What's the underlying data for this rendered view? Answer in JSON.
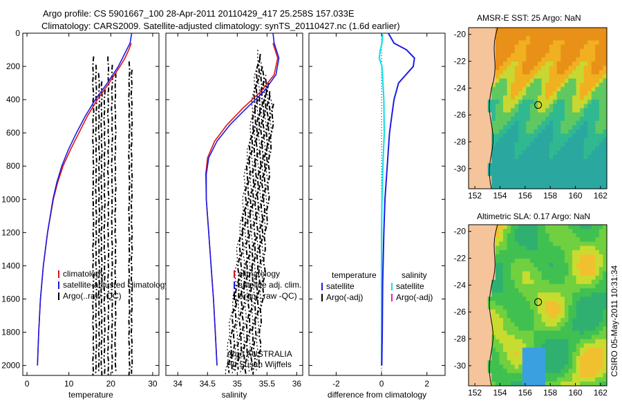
{
  "header": {
    "line1": "Argo profile: CS 5901667_100 28-Apr-2011 20110429_417 25.258S 157.033E",
    "line2": "Climatology: CARS2009. Satellite-adjusted climatology: synTS_20110427.nc (1.6d earlier)"
  },
  "colors": {
    "clim": "#e01010",
    "sat": "#1a1ae6",
    "argo": "#000000",
    "cyan": "#18e0e8",
    "magenta": "#e018d0",
    "land": "#f6c49a"
  },
  "chart_data": [
    {
      "type": "line",
      "xlabel": "temperature",
      "xlim": [
        -1,
        31.5
      ],
      "ylim": [
        2060,
        0
      ],
      "xticks": [
        0,
        10,
        20,
        30
      ],
      "yticks": [
        0,
        200,
        400,
        600,
        800,
        1000,
        1200,
        1400,
        1600,
        1800,
        2000
      ],
      "series": [
        {
          "name": "climatology",
          "depth": [
            60,
            100,
            150,
            200,
            300,
            400,
            500,
            600,
            700,
            800,
            900,
            1000,
            1200,
            1400,
            1600,
            1800,
            2000
          ],
          "values": [
            24.9,
            24.3,
            23.4,
            22.2,
            19.6,
            16.8,
            14.4,
            12.4,
            10.4,
            8.6,
            7.3,
            6.3,
            4.9,
            3.9,
            3.2,
            2.8,
            2.5
          ]
        },
        {
          "name": "satellite-adjusted climatology",
          "depth": [
            0,
            60,
            100,
            150,
            200,
            300,
            400,
            500,
            600,
            700,
            800,
            900,
            1000,
            1200,
            1400,
            1600,
            1800,
            2000
          ],
          "values": [
            25.0,
            24.6,
            23.8,
            22.8,
            21.8,
            19.2,
            16.3,
            13.9,
            11.8,
            9.9,
            8.3,
            7.1,
            6.2,
            4.9,
            3.9,
            3.2,
            2.8,
            2.5
          ]
        },
        {
          "name": "Argo(..raw -QC)",
          "style": "dash-dot",
          "lines": [
            15.8,
            16.5,
            17.2,
            17.8,
            18.5,
            19.4,
            20.3,
            21.1,
            24.4,
            25.0
          ]
        }
      ],
      "legend": [
        "climatology",
        "satellite-adjusted climatology",
        "Argo(..raw -QC)"
      ]
    },
    {
      "type": "line",
      "xlabel": "salinity",
      "xlim": [
        33.8,
        36.1
      ],
      "ylim": [
        2060,
        0
      ],
      "xticks": [
        34,
        34.5,
        35,
        35.5,
        36
      ],
      "yticks": [
        0,
        200,
        400,
        600,
        800,
        1000,
        1200,
        1400,
        1600,
        1800,
        2000
      ],
      "series": [
        {
          "name": "climatology",
          "depth": [
            60,
            150,
            250,
            350,
            450,
            550,
            650,
            750,
            850,
            1000,
            1200,
            1400,
            1600,
            1800,
            2000
          ],
          "values": [
            35.6,
            35.68,
            35.62,
            35.4,
            35.1,
            34.83,
            34.62,
            34.5,
            34.47,
            34.48,
            34.52,
            34.56,
            34.6,
            34.63,
            34.66
          ]
        },
        {
          "name": "satellite adj. clim.",
          "depth": [
            0,
            60,
            150,
            250,
            350,
            450,
            550,
            650,
            750,
            850,
            1000,
            1200,
            1400,
            1600,
            1800,
            2000
          ],
          "values": [
            35.6,
            35.62,
            35.7,
            35.65,
            35.45,
            35.16,
            34.88,
            34.66,
            34.52,
            34.48,
            34.48,
            34.52,
            34.56,
            34.6,
            34.63,
            34.66
          ]
        },
        {
          "name": "Argo(..raw -QC)",
          "style": "dash-dot",
          "top_range": [
            35.35,
            35.6
          ],
          "bottom_range": [
            34.8,
            35.35
          ]
        }
      ],
      "legend": [
        "climatology",
        "satellite adj. clim.",
        "Argo(..raw -QC)"
      ],
      "annotation": [
        "Argo AUSTRALIA",
        "PI: Susan Wijffels"
      ]
    },
    {
      "type": "line",
      "xlabel": "difference from climatology",
      "xlim": [
        -3.2,
        2.8
      ],
      "ylim": [
        2060,
        0
      ],
      "xticks": [
        -2,
        0,
        2
      ],
      "yticks": [
        0,
        200,
        400,
        600,
        800,
        1000,
        1200,
        1400,
        1600,
        1800,
        2000
      ],
      "series": [
        {
          "name": "temperature satellite",
          "depth": [
            0,
            60,
            100,
            150,
            200,
            300,
            400,
            500,
            600,
            800,
            1000,
            1200,
            1500,
            1800,
            2000
          ],
          "values": [
            0.3,
            0.55,
            1.1,
            1.45,
            1.4,
            0.75,
            0.55,
            0.45,
            0.35,
            0.25,
            0.15,
            0.1,
            0.05,
            0.03,
            0.01
          ]
        },
        {
          "name": "salinity satellite",
          "depth": [
            0,
            60,
            100,
            150,
            200,
            400,
            600,
            800,
            1000,
            1200,
            1500,
            1800,
            2000
          ],
          "values": [
            0.05,
            0.02,
            -0.05,
            -0.1,
            0.02,
            0.1,
            0.12,
            0.06,
            0.02,
            0.0,
            0.0,
            0.0,
            0.0
          ]
        }
      ],
      "legend_temperature": [
        "temperature",
        "satellite",
        "Argo(-adj)"
      ],
      "legend_salinity": [
        "salinity",
        "satellite",
        "Argo(-adj)"
      ]
    },
    {
      "type": "heatmap",
      "title": "AMSR-E SST: 25 Argo: NaN",
      "xlim": [
        151.5,
        162.5
      ],
      "ylim": [
        -31.5,
        -19.5
      ],
      "xticks": [
        152,
        154,
        156,
        158,
        160,
        162
      ],
      "yticks": [
        -20,
        -22,
        -24,
        -26,
        -28,
        -30
      ],
      "marker": {
        "lon": 157.033,
        "lat": -25.258
      }
    },
    {
      "type": "heatmap",
      "title": "Altimetric SLA: 0.17 Argo: NaN",
      "xlim": [
        151.5,
        162.5
      ],
      "ylim": [
        -31.5,
        -19.5
      ],
      "xticks": [
        152,
        154,
        156,
        158,
        160,
        162
      ],
      "yticks": [
        -20,
        -22,
        -24,
        -26,
        -28,
        -30
      ],
      "marker": {
        "lon": 157.033,
        "lat": -25.258
      }
    }
  ],
  "credit": "CSIRO 05-May-2011 10:31:34"
}
